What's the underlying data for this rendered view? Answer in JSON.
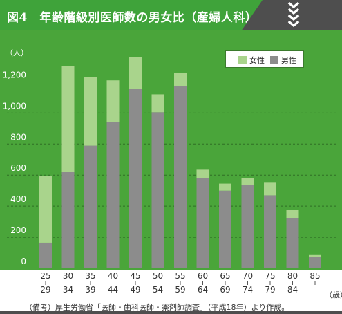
{
  "header": {
    "title": "図4　年齢階級別医師数の男女比（産婦人科）",
    "data_label": "data",
    "icon": "chevron-down-icon"
  },
  "colors": {
    "panel_green": "#4aa53a",
    "female": "#a9d48c",
    "male": "#8c8c8c",
    "header_green": "#3fa33a",
    "header_dark": "#4e4e4e"
  },
  "source_note": "（備考）厚生労働省「医師・歯科医師・薬剤師調査」（平成18年）より作成。",
  "chart_data": {
    "type": "bar",
    "stacked": true,
    "ylabel": "（人）",
    "xunit": "（歳）",
    "ylim": [
      0,
      1300
    ],
    "yticks": [
      "0",
      "200",
      "400",
      "600",
      "800",
      "1,000",
      "1,200"
    ],
    "ytick_values": [
      0,
      200,
      400,
      600,
      800,
      1000,
      1200
    ],
    "grid": "horizontal dashed",
    "legend_position": "top-right",
    "categories": [
      {
        "top": "25",
        "bottom": "29"
      },
      {
        "top": "30",
        "bottom": "34"
      },
      {
        "top": "35",
        "bottom": "39"
      },
      {
        "top": "40",
        "bottom": "44"
      },
      {
        "top": "45",
        "bottom": "49"
      },
      {
        "top": "50",
        "bottom": "54"
      },
      {
        "top": "55",
        "bottom": "59"
      },
      {
        "top": "60",
        "bottom": "64"
      },
      {
        "top": "65",
        "bottom": "69"
      },
      {
        "top": "70",
        "bottom": "74"
      },
      {
        "top": "75",
        "bottom": "79"
      },
      {
        "top": "80",
        "bottom": "84"
      },
      {
        "top": "85",
        "bottom": ""
      }
    ],
    "series": [
      {
        "name": "男性",
        "color": "#8c8c8c",
        "values": [
          165,
          620,
          790,
          940,
          1155,
          1005,
          1175,
          580,
          500,
          535,
          470,
          325,
          75
        ]
      },
      {
        "name": "女性",
        "color": "#a9d48c",
        "values": [
          430,
          680,
          440,
          270,
          205,
          115,
          85,
          55,
          45,
          45,
          85,
          50,
          15
        ]
      }
    ]
  }
}
